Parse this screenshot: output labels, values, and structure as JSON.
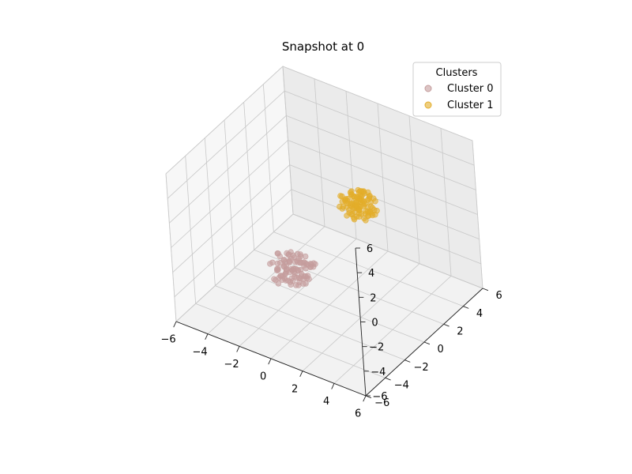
{
  "chart_data": {
    "type": "scatter",
    "projection": "3d",
    "title": "Snapshot at 0",
    "xlabel": "",
    "ylabel": "",
    "zlabel": "",
    "xlim": [
      -6,
      6
    ],
    "ylim": [
      -6,
      6
    ],
    "zlim": [
      -6,
      6
    ],
    "x_ticks": [
      -6,
      -4,
      -2,
      0,
      2,
      4,
      6
    ],
    "y_ticks": [
      -6,
      -4,
      -2,
      0,
      2,
      4,
      6
    ],
    "z_ticks": [
      -6,
      -4,
      -2,
      0,
      2,
      4,
      6
    ],
    "grid": true,
    "legend": {
      "title": "Clusters",
      "placement": "top-right"
    },
    "series": [
      {
        "name": "Cluster 0",
        "color": "#c49c9c",
        "points": [
          [
            -1.1,
            -1.4,
            -2.6
          ],
          [
            -0.8,
            -1.0,
            -2.2
          ],
          [
            -1.5,
            -1.8,
            -2.9
          ],
          [
            -0.6,
            -1.2,
            -3.1
          ],
          [
            -1.3,
            -0.7,
            -2.4
          ],
          [
            -0.9,
            -2.1,
            -2.0
          ],
          [
            -1.7,
            -1.1,
            -3.4
          ],
          [
            -0.4,
            -1.6,
            -2.7
          ],
          [
            -1.2,
            -1.3,
            -1.8
          ],
          [
            -2.0,
            -1.5,
            -2.5
          ],
          [
            -0.7,
            -0.5,
            -2.9
          ],
          [
            -1.4,
            -2.3,
            -3.0
          ],
          [
            -1.0,
            -1.9,
            -2.3
          ],
          [
            -0.3,
            -1.1,
            -2.0
          ],
          [
            -1.8,
            -0.9,
            -2.8
          ],
          [
            -1.1,
            -0.4,
            -3.3
          ],
          [
            -0.5,
            -2.0,
            -2.6
          ],
          [
            -1.6,
            -1.7,
            -1.9
          ],
          [
            -0.9,
            -1.4,
            -3.6
          ],
          [
            -1.3,
            -2.6,
            -2.4
          ],
          [
            -2.3,
            -1.2,
            -2.1
          ],
          [
            -0.2,
            -1.5,
            -2.9
          ],
          [
            -1.0,
            -0.8,
            -2.5
          ],
          [
            -1.5,
            -1.0,
            -3.1
          ],
          [
            -0.7,
            -1.8,
            -2.2
          ],
          [
            -1.9,
            -2.0,
            -2.7
          ],
          [
            -1.2,
            -1.6,
            -3.5
          ],
          [
            -0.6,
            -0.9,
            -2.4
          ],
          [
            -1.4,
            -1.3,
            -2.0
          ],
          [
            -0.8,
            -2.4,
            -3.0
          ],
          [
            -2.1,
            -1.7,
            -2.9
          ],
          [
            -1.1,
            -1.1,
            -1.6
          ],
          [
            -0.4,
            -0.7,
            -2.6
          ],
          [
            -1.7,
            -2.2,
            -2.3
          ],
          [
            -1.0,
            -1.5,
            -3.2
          ],
          [
            -1.3,
            -0.6,
            -2.8
          ],
          [
            -0.5,
            -1.3,
            -1.9
          ],
          [
            -1.8,
            -1.4,
            -3.4
          ],
          [
            -0.9,
            -2.7,
            -2.5
          ],
          [
            -1.6,
            -0.8,
            -2.2
          ],
          [
            -2.4,
            -0.9,
            -2.6
          ],
          [
            -0.3,
            -2.2,
            -2.4
          ],
          [
            -1.2,
            -1.8,
            -1.7
          ],
          [
            -0.8,
            -1.2,
            -3.8
          ],
          [
            -1.5,
            -2.5,
            -2.1
          ],
          [
            -1.9,
            -1.1,
            -3.0
          ],
          [
            -0.6,
            -1.6,
            -2.8
          ],
          [
            -1.4,
            -0.4,
            -2.3
          ],
          [
            -1.0,
            -2.0,
            -2.9
          ],
          [
            -1.7,
            -1.6,
            -2.6
          ],
          [
            -0.2,
            -0.8,
            -2.2
          ],
          [
            -1.3,
            -1.9,
            -3.3
          ],
          [
            -2.2,
            -1.4,
            -1.9
          ],
          [
            -0.9,
            -0.6,
            -2.7
          ],
          [
            -1.1,
            -2.3,
            -2.0
          ],
          [
            -0.5,
            -1.4,
            -3.5
          ],
          [
            -1.6,
            -1.2,
            -2.4
          ],
          [
            -0.7,
            -2.6,
            -2.6
          ],
          [
            -1.8,
            -0.7,
            -2.1
          ],
          [
            -1.2,
            -1.0,
            -3.1
          ],
          [
            -2.6,
            -1.6,
            -2.8
          ],
          [
            -0.4,
            -1.9,
            -2.3
          ],
          [
            -1.4,
            -1.5,
            -1.5
          ],
          [
            -0.8,
            -0.3,
            -2.9
          ],
          [
            -1.5,
            -2.8,
            -2.7
          ],
          [
            -1.9,
            -1.9,
            -2.2
          ],
          [
            -0.6,
            -1.0,
            -3.2
          ],
          [
            -1.1,
            -1.7,
            -2.5
          ],
          [
            -0.3,
            -2.4,
            -2.8
          ],
          [
            -1.7,
            -0.5,
            -3.0
          ],
          [
            -1.0,
            -1.3,
            -2.1
          ],
          [
            -2.0,
            -2.2,
            -3.3
          ],
          [
            -0.9,
            -1.8,
            -2.6
          ],
          [
            -1.3,
            -0.9,
            -2.4
          ],
          [
            -0.7,
            -1.5,
            -1.8
          ],
          [
            -1.6,
            -2.1,
            -2.9
          ],
          [
            -1.2,
            -2.9,
            -2.3
          ],
          [
            -0.5,
            -0.5,
            -2.5
          ],
          [
            -2.1,
            -1.0,
            -2.7
          ],
          [
            -1.4,
            -1.1,
            -3.6
          ],
          [
            -0.8,
            -2.0,
            -2.0
          ],
          [
            -1.8,
            -1.3,
            -2.5
          ],
          [
            -1.0,
            -0.7,
            -2.8
          ],
          [
            -0.2,
            -1.7,
            -2.7
          ],
          [
            -1.5,
            -1.9,
            -2.2
          ],
          [
            -1.2,
            -1.4,
            -2.9
          ],
          [
            -0.6,
            -2.2,
            -3.1
          ],
          [
            -1.9,
            -0.8,
            -2.3
          ],
          [
            -1.1,
            -2.5,
            -2.6
          ],
          [
            -0.4,
            -1.0,
            -2.4
          ],
          [
            -1.7,
            -1.8,
            -3.2
          ],
          [
            -0.9,
            -1.1,
            -1.7
          ],
          [
            -1.3,
            -2.0,
            -2.5
          ],
          [
            -2.3,
            -1.8,
            -2.4
          ],
          [
            -0.7,
            -1.3,
            -3.3
          ],
          [
            -1.0,
            -0.5,
            -2.2
          ],
          [
            -1.6,
            -1.5,
            -2.8
          ],
          [
            -0.5,
            -1.8,
            -2.1
          ],
          [
            -1.4,
            -2.7,
            -3.0
          ],
          [
            -1.8,
            -1.1,
            -1.9
          ]
        ]
      },
      {
        "name": "Cluster 1",
        "color": "#e3ad2a",
        "points": [
          [
            1.2,
            1.3,
            1.5
          ],
          [
            1.6,
            1.0,
            1.9
          ],
          [
            0.9,
            1.8,
            1.2
          ],
          [
            1.4,
            1.5,
            2.3
          ],
          [
            2.0,
            1.1,
            1.6
          ],
          [
            1.1,
            0.7,
            2.0
          ],
          [
            0.7,
            1.4,
            1.8
          ],
          [
            1.8,
            1.9,
            1.1
          ],
          [
            1.3,
            1.2,
            2.6
          ],
          [
            1.5,
            2.2,
            1.7
          ],
          [
            0.6,
            1.0,
            1.4
          ],
          [
            2.2,
            1.4,
            2.1
          ],
          [
            1.0,
            1.6,
            0.9
          ],
          [
            1.7,
            0.8,
            2.4
          ],
          [
            1.2,
            2.0,
            1.9
          ],
          [
            0.8,
            1.1,
            2.2
          ],
          [
            1.9,
            1.6,
            1.3
          ],
          [
            1.4,
            0.9,
            1.0
          ],
          [
            1.1,
            1.9,
            2.5
          ],
          [
            2.1,
            1.2,
            1.8
          ],
          [
            0.5,
            1.5,
            1.6
          ],
          [
            1.6,
            1.7,
            2.8
          ],
          [
            1.3,
            0.6,
            1.7
          ],
          [
            0.9,
            2.3,
            1.4
          ],
          [
            1.8,
            1.3,
            2.0
          ],
          [
            1.5,
            1.0,
            1.2
          ],
          [
            1.0,
            1.3,
            2.7
          ],
          [
            2.3,
            1.8,
            1.5
          ],
          [
            1.2,
            1.7,
            0.8
          ],
          [
            0.7,
            0.9,
            2.1
          ],
          [
            1.7,
            2.1,
            2.2
          ],
          [
            1.4,
            1.4,
            1.4
          ],
          [
            2.0,
            0.7,
            1.9
          ],
          [
            0.8,
            1.7,
            2.4
          ],
          [
            1.1,
            1.1,
            1.1
          ],
          [
            1.6,
            1.5,
            2.6
          ],
          [
            1.9,
            2.3,
            1.7
          ],
          [
            1.3,
            0.8,
            2.3
          ],
          [
            0.6,
            1.3,
            1.9
          ],
          [
            1.5,
            1.9,
            1.0
          ],
          [
            2.4,
            1.0,
            2.0
          ],
          [
            1.0,
            2.1,
            1.6
          ],
          [
            1.7,
            1.2,
            2.9
          ],
          [
            1.2,
            0.5,
            1.5
          ],
          [
            0.9,
            1.5,
            2.3
          ],
          [
            1.8,
            1.7,
            0.9
          ],
          [
            1.4,
            2.4,
            2.1
          ],
          [
            2.2,
            1.5,
            1.3
          ],
          [
            1.1,
            1.4,
            2.0
          ],
          [
            0.7,
            2.0,
            1.7
          ],
          [
            1.6,
            0.9,
            2.5
          ],
          [
            1.3,
            1.6,
            1.2
          ],
          [
            2.0,
            2.0,
            2.2
          ],
          [
            0.8,
            0.8,
            1.8
          ],
          [
            1.5,
            1.3,
            1.6
          ],
          [
            1.9,
            0.9,
            2.7
          ],
          [
            1.2,
            2.2,
            1.4
          ],
          [
            0.5,
            1.2,
            2.2
          ],
          [
            1.7,
            1.6,
            1.9
          ],
          [
            1.0,
            1.0,
            2.4
          ],
          [
            2.1,
            1.9,
            1.0
          ],
          [
            1.4,
            1.1,
            2.0
          ],
          [
            1.1,
            2.5,
            1.8
          ],
          [
            1.8,
            1.4,
            2.3
          ],
          [
            0.6,
            1.8,
            1.1
          ],
          [
            1.5,
            0.6,
            1.7
          ],
          [
            1.3,
            1.8,
            2.6
          ],
          [
            2.3,
            1.3,
            1.6
          ],
          [
            0.9,
            1.2,
            1.3
          ],
          [
            1.6,
            2.2,
            2.0
          ],
          [
            1.2,
            1.5,
            1.8
          ],
          [
            1.9,
            1.1,
            1.2
          ],
          [
            1.0,
            0.9,
            2.1
          ],
          [
            1.7,
            1.8,
            1.5
          ],
          [
            1.4,
            0.7,
            2.2
          ],
          [
            2.0,
            1.6,
            2.5
          ],
          [
            0.8,
            2.2,
            1.6
          ],
          [
            1.3,
            1.0,
            1.0
          ],
          [
            1.6,
            1.2,
            2.4
          ],
          [
            1.1,
            1.7,
            1.3
          ],
          [
            1.8,
            2.0,
            1.8
          ],
          [
            0.7,
            0.6,
            1.9
          ],
          [
            1.5,
            1.6,
            2.1
          ],
          [
            2.2,
            0.8,
            1.4
          ],
          [
            1.2,
            1.1,
            2.8
          ],
          [
            1.0,
            2.4,
            2.0
          ],
          [
            1.9,
            1.5,
            1.1
          ],
          [
            1.4,
            1.8,
            1.6
          ],
          [
            0.6,
            0.9,
            2.5
          ],
          [
            1.7,
            1.0,
            1.8
          ],
          [
            1.3,
            2.1,
            2.3
          ],
          [
            2.1,
            1.7,
            1.7
          ],
          [
            0.9,
            1.6,
            1.1
          ],
          [
            1.5,
            1.4,
            2.9
          ],
          [
            1.8,
            0.8,
            1.5
          ],
          [
            1.2,
            1.9,
            1.2
          ],
          [
            1.6,
            1.1,
            2.0
          ],
          [
            1.0,
            1.4,
            1.7
          ],
          [
            2.4,
            1.4,
            1.9
          ],
          [
            1.4,
            1.3,
            2.5
          ]
        ]
      }
    ]
  }
}
